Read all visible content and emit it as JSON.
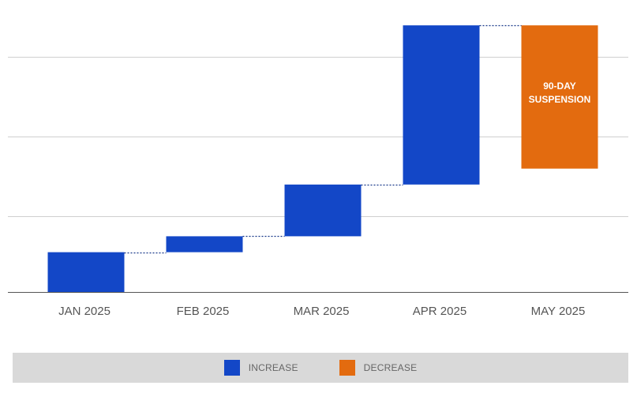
{
  "chart_data": {
    "type": "waterfall",
    "title": "",
    "xlabel": "",
    "ylabel": "",
    "categories": [
      "JAN 2025",
      "FEB 2025",
      "MAR 2025",
      "APR 2025",
      "MAY 2025"
    ],
    "bars": [
      {
        "category": "JAN 2025",
        "start": 0,
        "end": 5,
        "kind": "increase"
      },
      {
        "category": "FEB 2025",
        "start": 5,
        "end": 7,
        "kind": "increase"
      },
      {
        "category": "MAR 2025",
        "start": 7,
        "end": 13.5,
        "kind": "increase"
      },
      {
        "category": "APR 2025",
        "start": 13.5,
        "end": 33.5,
        "kind": "increase"
      },
      {
        "category": "MAY 2025",
        "start": 33.5,
        "end": 15.5,
        "kind": "decrease",
        "label_lines": [
          "90-DAY",
          "SUSPENSION"
        ]
      }
    ],
    "ylim": [
      0,
      35
    ],
    "gridlines": [
      0,
      9.5,
      19.5,
      29.5
    ],
    "grid": true,
    "y_tick_labels": false,
    "connectors": "dotted",
    "legend": {
      "position": "bottom",
      "items": [
        {
          "label": "INCREASE",
          "kind": "increase"
        },
        {
          "label": "DECREASE",
          "kind": "decrease"
        }
      ]
    },
    "colors": {
      "increase": "#1347c7",
      "decrease": "#e36b0f",
      "grid": "#cfcfcf",
      "axis": "#555555",
      "connector": "#1a3a8a"
    }
  }
}
